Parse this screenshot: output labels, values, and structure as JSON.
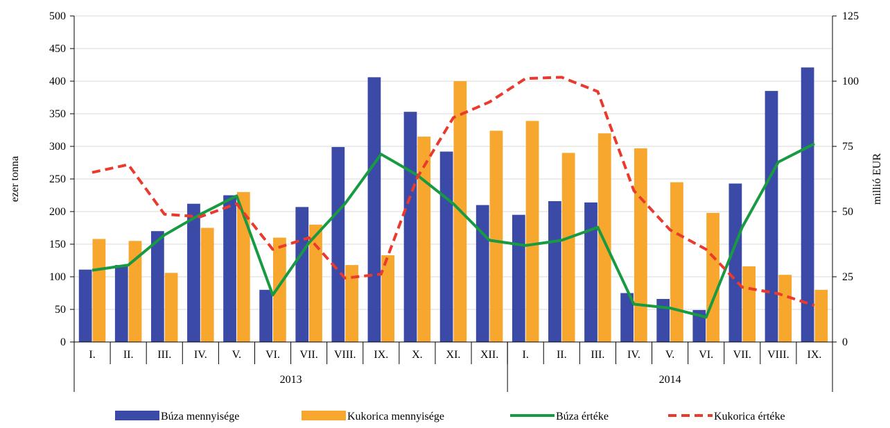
{
  "chart_data": {
    "type": "bar",
    "categories": [
      "I.",
      "II.",
      "III.",
      "IV.",
      "V.",
      "VI.",
      "VII.",
      "VIII.",
      "IX.",
      "X.",
      "XI.",
      "XII.",
      "I.",
      "II.",
      "III.",
      "IV.",
      "V.",
      "VI.",
      "VII.",
      "VIII.",
      "IX."
    ],
    "years": [
      {
        "label": "2013",
        "months": 12
      },
      {
        "label": "2014",
        "months": 9
      }
    ],
    "series": [
      {
        "name": "Búza mennyisége",
        "kind": "bar",
        "axis": "left",
        "color": "#3a4aa6",
        "values": [
          111,
          118,
          170,
          212,
          225,
          80,
          207,
          299,
          406,
          353,
          292,
          210,
          195,
          216,
          214,
          75,
          66,
          49,
          243,
          385,
          421
        ]
      },
      {
        "name": "Kukorica mennyisége",
        "kind": "bar",
        "axis": "left",
        "color": "#f8a72e",
        "values": [
          158,
          155,
          106,
          175,
          230,
          160,
          180,
          118,
          133,
          315,
          400,
          324,
          339,
          290,
          320,
          297,
          245,
          198,
          116,
          103,
          80
        ]
      },
      {
        "name": "Búza értéke",
        "kind": "line",
        "axis": "right",
        "color": "#179a41",
        "dash": "solid",
        "values": [
          27.5,
          29.5,
          41,
          49,
          56,
          18,
          38,
          53,
          72,
          64,
          53,
          39,
          37,
          39,
          44,
          14.5,
          13,
          9.5,
          44,
          69,
          76
        ]
      },
      {
        "name": "Kukorica értéke",
        "kind": "line",
        "axis": "right",
        "color": "#ea3a2d",
        "dash": "dashed",
        "values": [
          65,
          68,
          49,
          48,
          53,
          35.5,
          40,
          24.5,
          26,
          63,
          86,
          92,
          101,
          101.5,
          96,
          58,
          43,
          35.5,
          21,
          18.5,
          14
        ]
      }
    ],
    "ylabel": "ezer tonna",
    "ylabel_right": "millió EUR",
    "ylim": [
      0,
      500
    ],
    "yticks": [
      "0",
      "50",
      "100",
      "150",
      "200",
      "250",
      "300",
      "350",
      "400",
      "450",
      "500"
    ],
    "ylim_right": [
      0,
      125
    ],
    "yticks_right": [
      "0",
      "25",
      "50",
      "75",
      "100",
      "125"
    ],
    "grid": true,
    "legend_position": "bottom"
  }
}
